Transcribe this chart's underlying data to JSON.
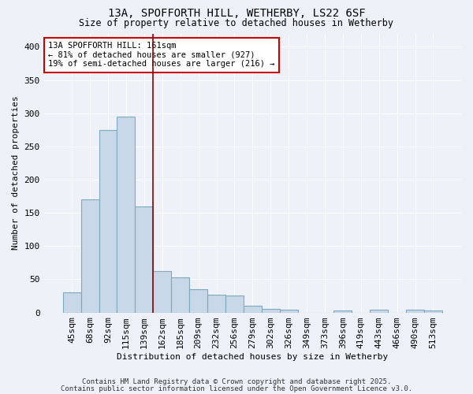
{
  "title_line1": "13A, SPOFFORTH HILL, WETHERBY, LS22 6SF",
  "title_line2": "Size of property relative to detached houses in Wetherby",
  "xlabel": "Distribution of detached houses by size in Wetherby",
  "ylabel": "Number of detached properties",
  "categories": [
    "45sqm",
    "68sqm",
    "92sqm",
    "115sqm",
    "139sqm",
    "162sqm",
    "185sqm",
    "209sqm",
    "232sqm",
    "256sqm",
    "279sqm",
    "302sqm",
    "326sqm",
    "349sqm",
    "373sqm",
    "396sqm",
    "419sqm",
    "443sqm",
    "466sqm",
    "490sqm",
    "513sqm"
  ],
  "values": [
    30,
    170,
    275,
    295,
    160,
    62,
    53,
    35,
    27,
    26,
    10,
    6,
    4,
    0,
    0,
    3,
    0,
    4,
    0,
    4,
    3
  ],
  "bar_color": "#c8d8e8",
  "bar_edgecolor": "#7daabe",
  "vline_x_index": 5,
  "vline_color": "#8b0000",
  "annotation_text": "13A SPOFFORTH HILL: 161sqm\n← 81% of detached houses are smaller (927)\n19% of semi-detached houses are larger (216) →",
  "annotation_box_color": "white",
  "annotation_box_edgecolor": "#cc0000",
  "footer_line1": "Contains HM Land Registry data © Crown copyright and database right 2025.",
  "footer_line2": "Contains public sector information licensed under the Open Government Licence v3.0.",
  "ylim": [
    0,
    420
  ],
  "yticks": [
    0,
    50,
    100,
    150,
    200,
    250,
    300,
    350,
    400
  ],
  "background_color": "#eef2f8",
  "grid_color": "#ffffff"
}
